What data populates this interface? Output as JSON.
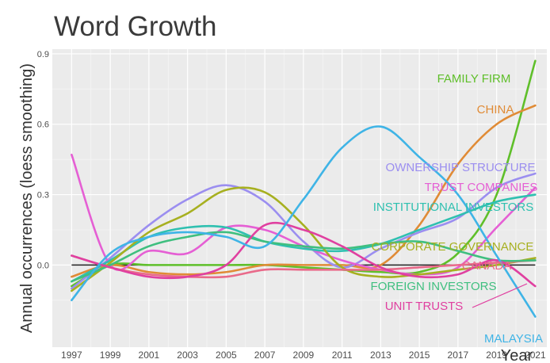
{
  "chart_data": {
    "type": "line",
    "title": "Word Growth",
    "xlabel": "Year",
    "ylabel": "Annual occurrences (loess smoothing)",
    "x": [
      1997,
      1999,
      2001,
      2003,
      2005,
      2007,
      2009,
      2011,
      2013,
      2015,
      2017,
      2019,
      2021
    ],
    "x_ticks": [
      "1997",
      "1999",
      "2001",
      "2003",
      "2005",
      "2007",
      "2009",
      "2011",
      "2013",
      "2015",
      "2017",
      "2019",
      "2021"
    ],
    "y_ticks": [
      "0.0",
      "0.3",
      "0.6",
      "0.9"
    ],
    "xlim": [
      1996,
      2021.6
    ],
    "ylim": [
      -0.35,
      0.92
    ],
    "grid": true,
    "series": [
      {
        "name": "FAMILY FIRM",
        "color": "#5fbf2a",
        "values": [
          -0.09,
          0.0,
          0.0,
          0.0,
          0.0,
          0.0,
          -0.01,
          -0.02,
          -0.03,
          -0.03,
          0.05,
          0.3,
          0.87
        ]
      },
      {
        "name": "CHINA",
        "color": "#e08b36",
        "values": [
          -0.05,
          0.0,
          -0.03,
          -0.04,
          -0.03,
          0.0,
          0.0,
          0.0,
          0.0,
          0.17,
          0.43,
          0.6,
          0.68
        ]
      },
      {
        "name": "OWNERSHIP STRUCTURE",
        "color": "#9b8ef0",
        "values": [
          -0.1,
          0.03,
          0.17,
          0.28,
          0.34,
          0.27,
          0.1,
          -0.01,
          0.07,
          0.14,
          0.2,
          0.33,
          0.39
        ]
      },
      {
        "name": "TRUST COMPANIES",
        "color": "#e55fd4",
        "values": [
          0.47,
          0.0,
          0.06,
          0.05,
          0.16,
          0.15,
          0.08,
          0.02,
          -0.02,
          -0.04,
          -0.01,
          0.16,
          0.33
        ]
      },
      {
        "name": "INSTITUTIONAL INVESTORS",
        "color": "#2fc0b0",
        "values": [
          -0.07,
          0.02,
          0.12,
          0.16,
          0.16,
          0.1,
          0.07,
          0.06,
          0.09,
          0.15,
          0.21,
          0.27,
          0.3
        ]
      },
      {
        "name": "CORPORATE GOVERNANCE",
        "color": "#a7b020",
        "values": [
          -0.11,
          0.01,
          0.14,
          0.22,
          0.32,
          0.31,
          0.17,
          -0.01,
          -0.05,
          -0.04,
          -0.02,
          0.0,
          0.03
        ]
      },
      {
        "name": "CANADA",
        "color": "#e96a8a",
        "values": [
          0.04,
          -0.01,
          -0.04,
          -0.05,
          -0.05,
          -0.02,
          -0.02,
          -0.02,
          -0.02,
          -0.01,
          0.0,
          0.01,
          0.02
        ]
      },
      {
        "name": "FOREIGN INVESTORS",
        "color": "#3fbf7f",
        "values": [
          -0.07,
          0.0,
          0.08,
          0.12,
          0.14,
          0.1,
          0.08,
          0.07,
          0.09,
          0.1,
          0.06,
          0.02,
          0.02
        ]
      },
      {
        "name": "UNIT TRUSTS",
        "color": "#e040a0",
        "values": [
          0.04,
          -0.01,
          -0.05,
          -0.05,
          0.0,
          0.17,
          0.15,
          0.08,
          -0.01,
          -0.05,
          -0.04,
          0.02,
          -0.09
        ]
      },
      {
        "name": "MALAYSIA",
        "color": "#3fb4e6",
        "values": [
          -0.15,
          0.05,
          0.12,
          0.14,
          0.12,
          0.08,
          0.28,
          0.5,
          0.59,
          0.46,
          0.3,
          0.04,
          -0.22
        ]
      }
    ]
  }
}
